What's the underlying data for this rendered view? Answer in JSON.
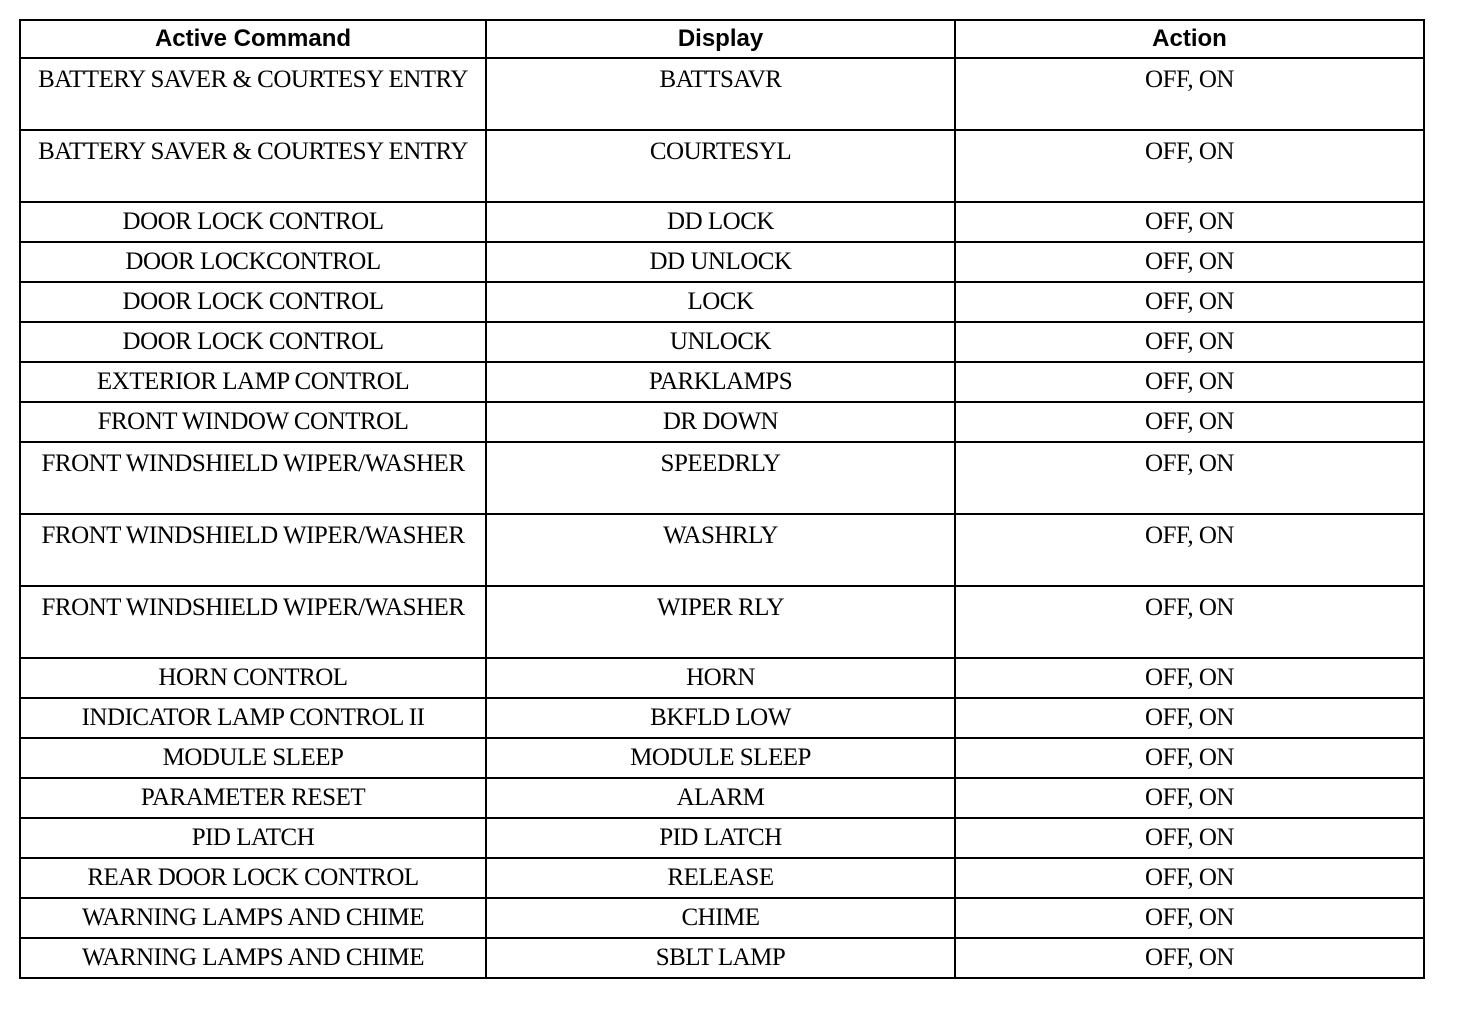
{
  "headers": [
    "Active Command",
    "Display",
    "Action"
  ],
  "rows": [
    {
      "command": "BATTERY SAVER & COURTESY ENTRY",
      "display": "BATTSAVR",
      "action": "OFF, ON"
    },
    {
      "command": "BATTERY SAVER & COURTESY ENTRY",
      "display": "COURTESYL",
      "action": "OFF, ON"
    },
    {
      "command": "DOOR LOCK CONTROL",
      "display": "DD LOCK",
      "action": "OFF, ON"
    },
    {
      "command": "DOOR LOCKCONTROL",
      "display": "DD UNLOCK",
      "action": "OFF, ON"
    },
    {
      "command": "DOOR LOCK CONTROL",
      "display": "LOCK",
      "action": "OFF, ON"
    },
    {
      "command": "DOOR LOCK CONTROL",
      "display": "UNLOCK",
      "action": "OFF, ON"
    },
    {
      "command": "EXTERIOR LAMP CONTROL",
      "display": "PARKLAMPS",
      "action": "OFF, ON"
    },
    {
      "command": "FRONT WINDOW CONTROL",
      "display": "DR DOWN",
      "action": "OFF, ON"
    },
    {
      "command": "FRONT WINDSHIELD WIPER/WASHER",
      "display": "SPEEDRLY",
      "action": "OFF, ON"
    },
    {
      "command": "FRONT WINDSHIELD WIPER/WASHER",
      "display": "WASHRLY",
      "action": "OFF, ON"
    },
    {
      "command": "FRONT WINDSHIELD WIPER/WASHER",
      "display": "WIPER RLY",
      "action": "OFF, ON"
    },
    {
      "command": "HORN CONTROL",
      "display": "HORN",
      "action": "OFF, ON"
    },
    {
      "command": "INDICATOR LAMP CONTROL II",
      "display": "BKFLD LOW",
      "action": "OFF, ON"
    },
    {
      "command": "MODULE SLEEP",
      "display": "MODULE SLEEP",
      "action": "OFF, ON"
    },
    {
      "command": "PARAMETER RESET",
      "display": "ALARM",
      "action": "OFF, ON"
    },
    {
      "command": "PID LATCH",
      "display": "PID LATCH",
      "action": "OFF, ON"
    },
    {
      "command": "REAR DOOR LOCK CONTROL",
      "display": "RELEASE",
      "action": "OFF, ON"
    },
    {
      "command": "WARNING LAMPS AND CHIME",
      "display": "CHIME",
      "action": "OFF, ON"
    },
    {
      "command": "WARNING LAMPS AND CHIME",
      "display": "SBLT LAMP",
      "action": "OFF, ON"
    }
  ]
}
